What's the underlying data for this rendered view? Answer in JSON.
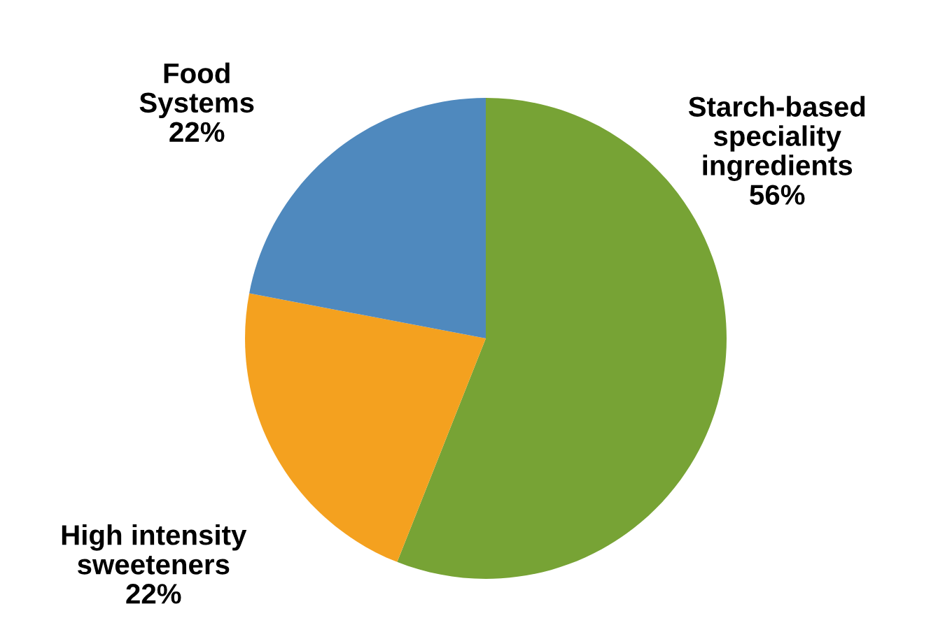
{
  "chart_data": {
    "type": "pie",
    "categories": [
      "Starch-based\nspeciality\ningredients",
      "High intensity\nsweeteners",
      "Food\nSystems"
    ],
    "values": [
      56,
      22,
      22
    ],
    "colors": [
      "#77a335",
      "#f4a11f",
      "#4f89be"
    ],
    "value_labels": [
      "56%",
      "22%",
      "22%"
    ]
  }
}
